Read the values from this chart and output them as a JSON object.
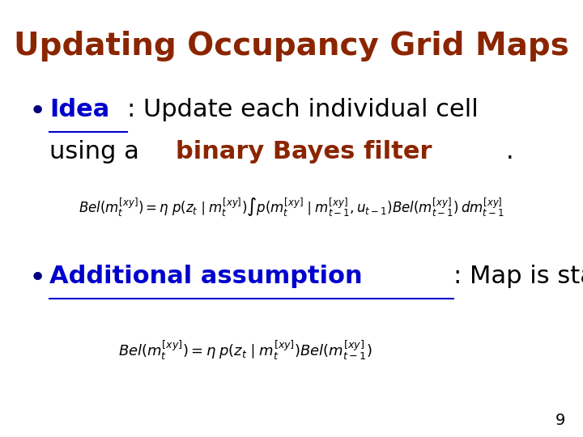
{
  "title": "Updating Occupancy Grid Maps",
  "title_color": "#8B2500",
  "title_fontsize": 28,
  "background_color": "#FFFFFF",
  "bullet_color": "#000080",
  "page_number": "9",
  "figsize": [
    7.2,
    5.4
  ],
  "dpi": 100,
  "idea_label": "Idea",
  "idea_label_color": "#0000CD",
  "idea_rest": ": Update each individual cell",
  "idea_line2_pre": "using a ",
  "idea_line2_highlight": "binary Bayes filter",
  "idea_line2_highlight_color": "#8B2500",
  "idea_line2_post": ".",
  "text_color": "#000000",
  "add_label": "Additional assumption",
  "add_label_color": "#0000CD",
  "add_rest": ": Map is static.",
  "bullet_fontsize": 26,
  "text_fontsize": 22,
  "eq1_fontsize": 12,
  "eq2_fontsize": 13
}
